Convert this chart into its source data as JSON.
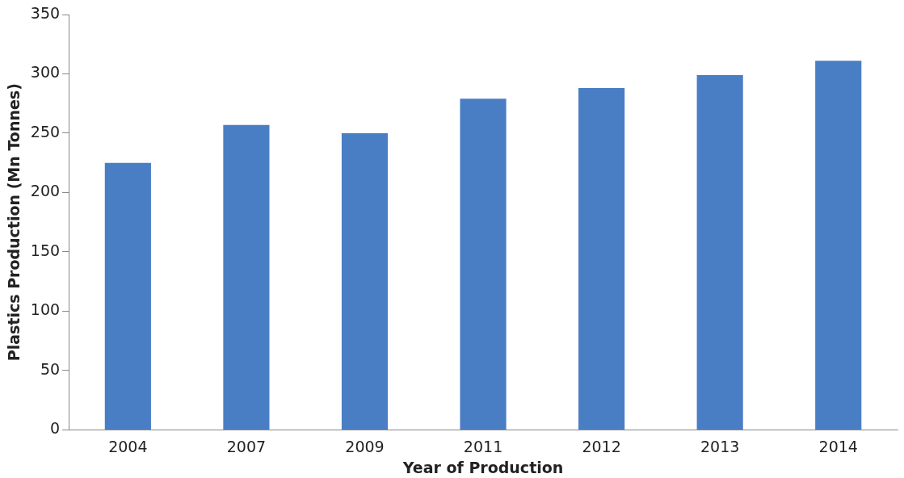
{
  "chart_data": {
    "type": "bar",
    "xlabel": "Year of Production",
    "ylabel": "Plastics Production (Mn Tonnes)",
    "categories": [
      "2004",
      "2007",
      "2009",
      "2011",
      "2012",
      "2013",
      "2014"
    ],
    "values": [
      225,
      257,
      250,
      279,
      288,
      299,
      311
    ],
    "color": "#4a7ec4",
    "ylim": [
      0,
      350
    ],
    "yticks": [
      0,
      50,
      100,
      150,
      200,
      250,
      300,
      350
    ],
    "grid": false,
    "legend": false
  }
}
